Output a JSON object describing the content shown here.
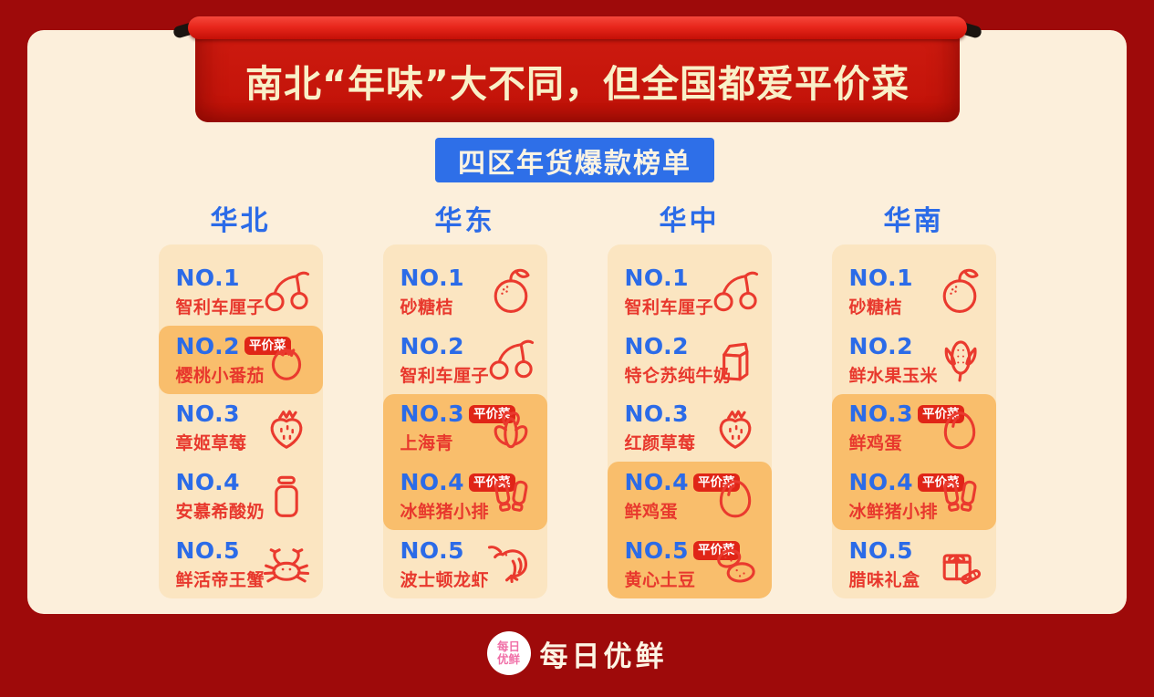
{
  "banner": {
    "title": "南北“年味”大不同，但全国都爱平价菜"
  },
  "section": {
    "badge_label": "四区年货爆款榜单"
  },
  "labels": {
    "cheap": "平价菜"
  },
  "colors": {
    "outer_background": "#9E0A0A",
    "card_background": "#FCEFDB",
    "banner_red": "#C5170E",
    "rod_red": "#E8271C",
    "title_cream": "#F9F0C8",
    "accent_blue": "#2E6FE8",
    "accent_red": "#E8382D",
    "cheap_badge_red": "#E02517",
    "panel_background": "#FBE5C1",
    "highlight_background": "#F9BE6C",
    "logo_pink": "#F06FA7"
  },
  "regions": [
    {
      "name": "华北",
      "items": [
        {
          "rank": "NO.1",
          "name": "智利车厘子",
          "icon": "cherry-icon",
          "cheap": false,
          "highlight": false
        },
        {
          "rank": "NO.2",
          "name": "樱桃小番茄",
          "icon": "tomato-icon",
          "cheap": true,
          "highlight": true
        },
        {
          "rank": "NO.3",
          "name": "章姬草莓",
          "icon": "strawberry-icon",
          "cheap": false,
          "highlight": false
        },
        {
          "rank": "NO.4",
          "name": "安慕希酸奶",
          "icon": "yogurt-bottle-icon",
          "cheap": false,
          "highlight": false
        },
        {
          "rank": "NO.5",
          "name": "鲜活帝王蟹",
          "icon": "crab-icon",
          "cheap": false,
          "highlight": false
        }
      ]
    },
    {
      "name": "华东",
      "items": [
        {
          "rank": "NO.1",
          "name": "砂糖桔",
          "icon": "tangerine-icon",
          "cheap": false,
          "highlight": false
        },
        {
          "rank": "NO.2",
          "name": "智利车厘子",
          "icon": "cherry-icon",
          "cheap": false,
          "highlight": false
        },
        {
          "rank": "NO.3",
          "name": "上海青",
          "icon": "bokchoy-icon",
          "cheap": true,
          "highlight": true
        },
        {
          "rank": "NO.4",
          "name": "冰鲜猪小排",
          "icon": "pork-ribs-icon",
          "cheap": true,
          "highlight": true
        },
        {
          "rank": "NO.5",
          "name": "波士顿龙虾",
          "icon": "lobster-icon",
          "cheap": false,
          "highlight": false
        }
      ]
    },
    {
      "name": "华中",
      "items": [
        {
          "rank": "NO.1",
          "name": "智利车厘子",
          "icon": "cherry-icon",
          "cheap": false,
          "highlight": false
        },
        {
          "rank": "NO.2",
          "name": "特仑苏纯牛奶",
          "icon": "milk-carton-icon",
          "cheap": false,
          "highlight": false
        },
        {
          "rank": "NO.3",
          "name": "红颜草莓",
          "icon": "strawberry-icon",
          "cheap": false,
          "highlight": false
        },
        {
          "rank": "NO.4",
          "name": "鲜鸡蛋",
          "icon": "egg-icon",
          "cheap": true,
          "highlight": true
        },
        {
          "rank": "NO.5",
          "name": "黄心土豆",
          "icon": "potato-icon",
          "cheap": true,
          "highlight": true
        }
      ]
    },
    {
      "name": "华南",
      "items": [
        {
          "rank": "NO.1",
          "name": "砂糖桔",
          "icon": "tangerine-icon",
          "cheap": false,
          "highlight": false
        },
        {
          "rank": "NO.2",
          "name": "鲜水果玉米",
          "icon": "corn-icon",
          "cheap": false,
          "highlight": false
        },
        {
          "rank": "NO.3",
          "name": "鲜鸡蛋",
          "icon": "egg-icon",
          "cheap": true,
          "highlight": true
        },
        {
          "rank": "NO.4",
          "name": "冰鲜猪小排",
          "icon": "pork-ribs-icon",
          "cheap": true,
          "highlight": true
        },
        {
          "rank": "NO.5",
          "name": "腊味礼盒",
          "icon": "gift-box-icon",
          "cheap": false,
          "highlight": false
        }
      ]
    }
  ],
  "footer": {
    "logo_line1": "每日",
    "logo_line2": "优鲜",
    "brand_name": "每日优鲜"
  }
}
